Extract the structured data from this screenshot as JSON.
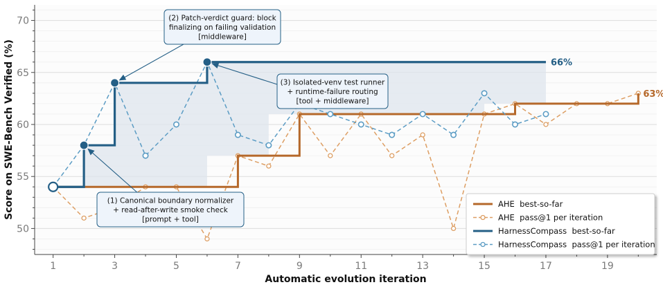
{
  "chart_data": {
    "type": "line",
    "xlabel": "Automatic evolution iteration",
    "ylabel": "Score on SWE-Bench Verified (%)",
    "xlim": [
      0.4,
      20.6
    ],
    "ylim": [
      47.5,
      71.5
    ],
    "xticks": [
      1,
      3,
      5,
      7,
      9,
      11,
      13,
      15,
      17,
      19
    ],
    "yticks": [
      50,
      55,
      60,
      65,
      70
    ],
    "grid": "horizontal",
    "legend_position": "bottom-right",
    "colors": {
      "ahe": "#b5682a",
      "ahe_light": "#dd9e63",
      "hc": "#245f86",
      "hc_light": "#5b9cc4",
      "fill": "#dfe6ee"
    },
    "series": [
      {
        "name": "AHE  best-so-far",
        "style": "step",
        "x": [
          1,
          2,
          3,
          4,
          5,
          6,
          7,
          8,
          9,
          10,
          11,
          12,
          13,
          14,
          15,
          16,
          17,
          18,
          19,
          20
        ],
        "values": [
          54,
          54,
          54,
          54,
          54,
          54,
          57,
          57,
          61,
          61,
          61,
          61,
          61,
          61,
          61,
          62,
          62,
          62,
          62,
          63
        ]
      },
      {
        "name": "AHE  pass@1 per iteration",
        "style": "dashed-markers",
        "x": [
          1,
          2,
          3,
          4,
          5,
          6,
          7,
          8,
          9,
          10,
          11,
          12,
          13,
          14,
          15,
          16,
          17,
          18,
          19,
          20
        ],
        "values": [
          54,
          51,
          52,
          54,
          54,
          49,
          57,
          56,
          61,
          57,
          61,
          57,
          59,
          50,
          61,
          62,
          60,
          62,
          62,
          63
        ]
      },
      {
        "name": "HarnessCompass  best-so-far",
        "style": "step",
        "x": [
          1,
          2,
          3,
          4,
          5,
          6,
          7,
          8,
          9,
          10,
          11,
          12,
          13,
          14,
          15,
          16,
          17
        ],
        "values": [
          54,
          58,
          64,
          64,
          64,
          66,
          66,
          66,
          66,
          66,
          66,
          66,
          66,
          66,
          66,
          66,
          66
        ]
      },
      {
        "name": "HarnessCompass  pass@1 per iteration",
        "style": "dashed-markers",
        "x": [
          1,
          2,
          3,
          4,
          5,
          6,
          7,
          8,
          9,
          10,
          11,
          12,
          13,
          14,
          15,
          16,
          17
        ],
        "values": [
          54,
          58,
          64,
          57,
          60,
          66,
          59,
          58,
          62,
          61,
          60,
          59,
          61,
          59,
          63,
          60,
          61
        ]
      }
    ],
    "end_labels": [
      {
        "text": "66%",
        "series": 2
      },
      {
        "text": "63%",
        "series": 0
      }
    ],
    "annotations": [
      {
        "lines": [
          "(1) Canonical boundary normalizer",
          "+ read-after-write smoke check",
          "[prompt + tool]"
        ],
        "target": [
          2,
          58
        ]
      },
      {
        "lines": [
          "(2) Patch-verdict guard: block",
          "finalizing on failing validation",
          "[middleware]"
        ],
        "target": [
          3,
          64
        ]
      },
      {
        "lines": [
          "(3) Isolated-venv test runner",
          "+ runtime-failure routing",
          "[tool + middleware]"
        ],
        "target": [
          6,
          66
        ]
      }
    ]
  }
}
